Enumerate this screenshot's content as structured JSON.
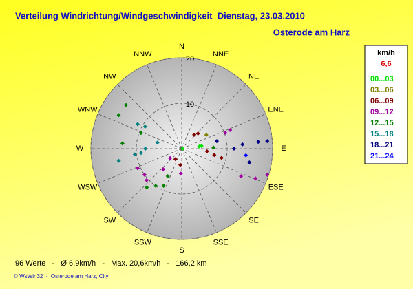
{
  "title": "Verteilung Windrichtung/Windgeschwindigkeit  Dienstag, 23.03.2010",
  "location": "Osterode am Harz",
  "stats": "96 Werte   -   Ø 6,9km/h   -   Max. 20,6km/h   -   166,2 km",
  "footer": "© WsWin32  -  Osterode am Harz, City",
  "chart_data": {
    "type": "polar-scatter",
    "legend_title": "km/h",
    "current": "6,6",
    "current_color": "#e00000",
    "directions": [
      "N",
      "NNE",
      "NE",
      "ENE",
      "E",
      "ESE",
      "SE",
      "SSE",
      "S",
      "SSW",
      "SW",
      "WSW",
      "W",
      "WNW",
      "NW",
      "NNW"
    ],
    "rlim": [
      0,
      20
    ],
    "rticks": [
      10,
      20
    ],
    "grid": true,
    "series": [
      {
        "name": "00...03",
        "color": "#00e000",
        "x": [
          90,
          82,
          83
        ],
        "values": [
          0.2,
          4.4,
          3.9
        ]
      },
      {
        "name": "03...06",
        "color": "#808000",
        "x": [
          61
        ],
        "values": [
          6.2
        ]
      },
      {
        "name": "06...09",
        "color": "#800000",
        "x": [
          211,
          185,
          42,
          47,
          96,
          101,
          103
        ],
        "values": [
          2.7,
          3.6,
          4.1,
          4.9,
          5.6,
          7.3,
          9
        ]
      },
      {
        "name": "09...12",
        "color": "#a000a0",
        "x": [
          246,
          228,
          235,
          231,
          222,
          182,
          69,
          70,
          112,
          107,
          115
        ],
        "values": [
          10.6,
          10.4,
          10,
          3.3,
          6.1,
          5.5,
          11.4,
          10.2,
          17.5,
          19.7,
          14.4
        ]
      },
      {
        "name": "12...15",
        "color": "#008000",
        "x": [
          308,
          298,
          291,
          275,
          215,
          207,
          206,
          88,
          222
        ],
        "values": [
          15.6,
          15.7,
          9.6,
          13.1,
          10,
          6.8,
          9.1,
          7,
          11.5
        ]
      },
      {
        "name": "15...18",
        "color": "#008080",
        "x": [
          299,
          301,
          263,
          264,
          270,
          284,
          259
        ],
        "values": [
          11.1,
          9.4,
          10.4,
          9,
          8,
          5.5,
          14.1
        ]
      },
      {
        "name": "18...21",
        "color": "#000080",
        "x": [
          78,
          86,
          85,
          85,
          101.5,
          90
        ],
        "values": [
          7.9,
          13.4,
          16.9,
          18.9,
          15.2,
          11.5
        ]
      },
      {
        "name": "21...24",
        "color": "#0000ff",
        "x": [
          96
        ],
        "values": [
          14.2
        ]
      }
    ]
  }
}
